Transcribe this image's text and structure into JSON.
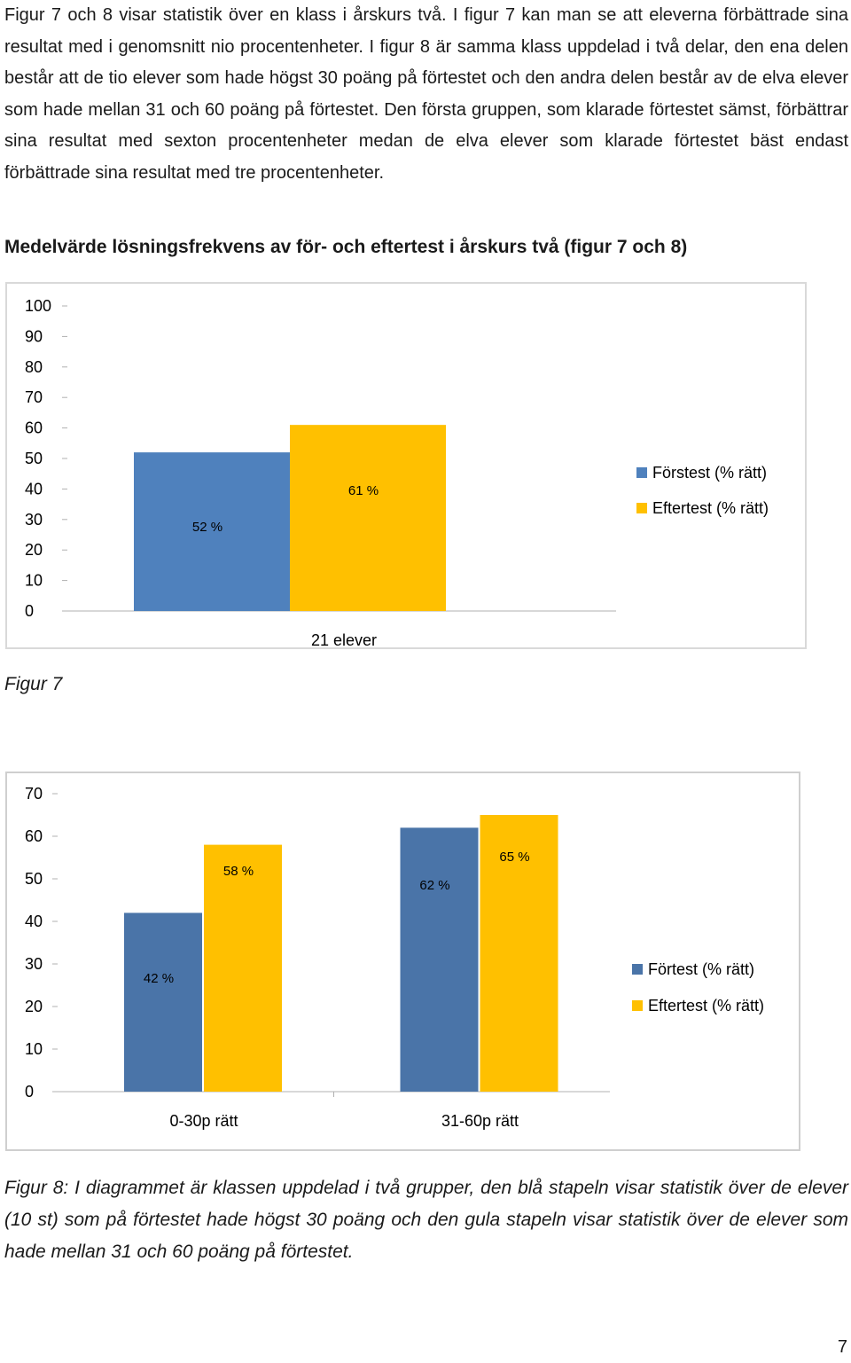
{
  "intro_text": "Figur 7 och 8 visar statistik över en klass i årskurs två. I figur 7 kan man se att eleverna förbättrade sina resultat med i genomsnitt nio procentenheter. I figur 8 är samma klass uppdelad i två delar, den ena delen består att de tio elever som hade högst 30 poäng på förtestet och den andra delen består av de elva elever som hade mellan 31 och 60 poäng på förtestet. Den första gruppen, som klarade förtestet sämst, förbättrar sina resultat med sexton procentenheter medan de elva elever som klarade förtestet bäst endast förbättrade sina resultat med tre procentenheter.",
  "heading": "Medelvärde lösningsfrekvens av för- och eftertest i årskurs två (figur 7 och 8)",
  "figure7_label": "Figur 7",
  "caption": "Figur 8: I diagrammet är klassen uppdelad i två grupper, den blå stapeln visar statistik över de elever (10 st) som på förtestet hade högst 30 poäng och den gula stapeln visar statistik över de elever som hade mellan 31 och 60 poäng på förtestet.",
  "page_number": "7",
  "colors": {
    "pre": "#4f81bd",
    "post": "#ffc000",
    "pre_dark": "#4a74a8"
  },
  "chart_data": [
    {
      "type": "bar",
      "categories": [
        "21 elever"
      ],
      "series": [
        {
          "name": "Förstest (% rätt)",
          "values": [
            52
          ],
          "labels": [
            "52 %"
          ]
        },
        {
          "name": "Eftertest (% rätt)",
          "values": [
            61
          ],
          "labels": [
            "61 %"
          ]
        }
      ],
      "ylim": [
        0,
        100
      ],
      "yticks": [
        0,
        10,
        20,
        30,
        40,
        50,
        60,
        70,
        80,
        90,
        100
      ],
      "grid": false,
      "legend": "right"
    },
    {
      "type": "bar",
      "categories": [
        "0-30p rätt",
        "31-60p rätt"
      ],
      "series": [
        {
          "name": "Förtest (% rätt)",
          "values": [
            42,
            62
          ],
          "labels": [
            "42 %",
            "62 %"
          ]
        },
        {
          "name": "Eftertest (% rätt)",
          "values": [
            58,
            65
          ],
          "labels": [
            "58 %",
            "65 %"
          ]
        }
      ],
      "ylim": [
        0,
        70
      ],
      "yticks": [
        0,
        10,
        20,
        30,
        40,
        50,
        60,
        70
      ],
      "grid": false,
      "legend": "right"
    }
  ]
}
